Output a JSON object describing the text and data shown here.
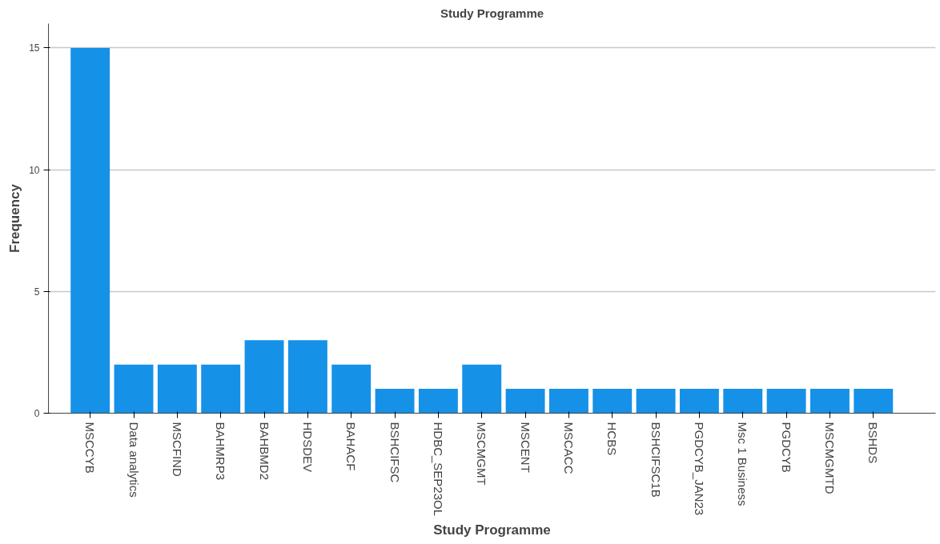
{
  "chart_data": {
    "type": "bar",
    "title": "Study Programme",
    "xlabel": "Study Programme",
    "ylabel": "Frequency",
    "categories": [
      "MSCCYB",
      "Data analytics",
      "MSCFIND",
      "BAHMRP3",
      "BAHBMD2",
      "HDSDEV",
      "BAHACF",
      "BSHCIFSC",
      "HDBC_SEP23OL",
      "MSCMGMT",
      "MSCENT",
      "MSCACC",
      "HCBS",
      "BSHCIFSC1B",
      "PGDCYB_JAN23",
      "Msc 1 Business",
      "PGDCYB",
      "MSCMGMTD",
      "BSHDS"
    ],
    "values": [
      15,
      2,
      2,
      2,
      3,
      3,
      2,
      1,
      1,
      2,
      1,
      1,
      1,
      1,
      1,
      1,
      1,
      1,
      1
    ],
    "color": "#1591e8",
    "ylim": [
      0,
      16
    ],
    "yticks": [
      0,
      5,
      10,
      15
    ],
    "grid": "y"
  }
}
